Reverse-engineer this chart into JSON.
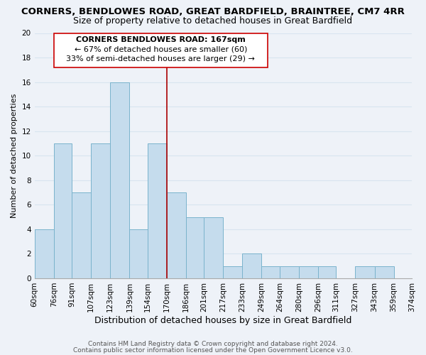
{
  "title": "CORNERS, BENDLOWES ROAD, GREAT BARDFIELD, BRAINTREE, CM7 4RR",
  "subtitle": "Size of property relative to detached houses in Great Bardfield",
  "xlabel": "Distribution of detached houses by size in Great Bardfield",
  "ylabel": "Number of detached properties",
  "footnote1": "Contains HM Land Registry data © Crown copyright and database right 2024.",
  "footnote2": "Contains public sector information licensed under the Open Government Licence v3.0.",
  "bar_edges": [
    60,
    76,
    91,
    107,
    123,
    139,
    154,
    170,
    186,
    201,
    217,
    233,
    249,
    264,
    280,
    296,
    311,
    327,
    343,
    359,
    374
  ],
  "bar_heights": [
    4,
    11,
    7,
    11,
    16,
    4,
    11,
    7,
    5,
    5,
    1,
    2,
    1,
    1,
    1,
    1,
    0,
    1,
    1,
    0
  ],
  "bar_color": "#c5dced",
  "bar_edgecolor": "#7ab3cc",
  "vline_x": 170,
  "vline_color": "#aa0000",
  "ylim": [
    0,
    20
  ],
  "yticks": [
    0,
    2,
    4,
    6,
    8,
    10,
    12,
    14,
    16,
    18,
    20
  ],
  "annotation_title": "CORNERS BENDLOWES ROAD: 167sqm",
  "annotation_line1": "← 67% of detached houses are smaller (60)",
  "annotation_line2": "33% of semi-detached houses are larger (29) →",
  "annotation_box_color": "#cc0000",
  "bg_color": "#eef2f8",
  "grid_color": "#d8e4f0",
  "title_fontsize": 9.5,
  "subtitle_fontsize": 9,
  "xlabel_fontsize": 9,
  "ylabel_fontsize": 8,
  "tick_fontsize": 7.5,
  "annotation_fontsize": 8,
  "footnote_fontsize": 6.5
}
